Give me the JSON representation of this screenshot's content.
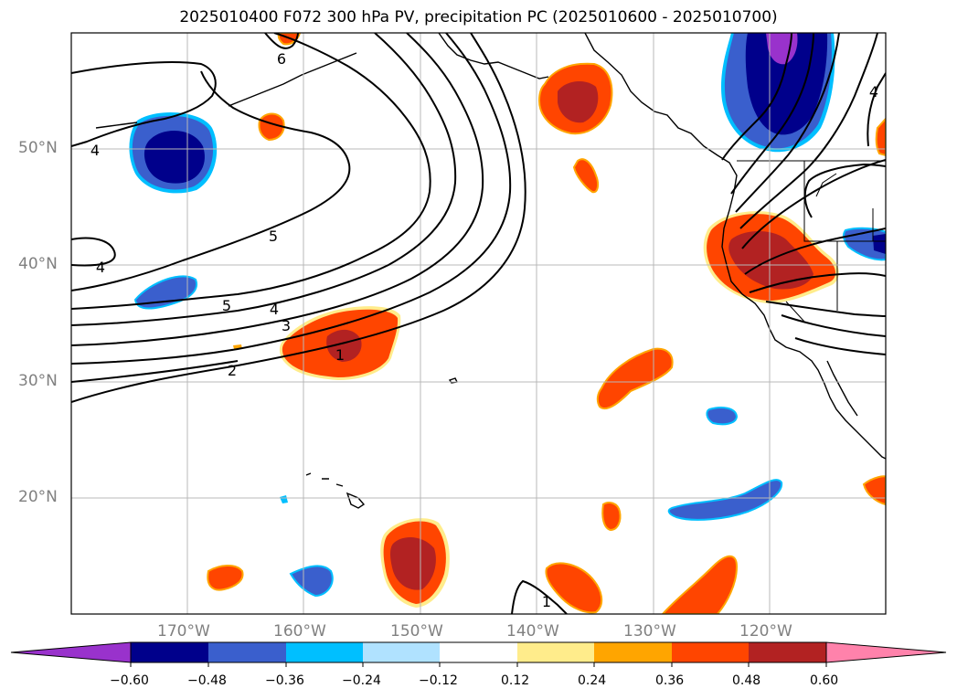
{
  "title": "2025010400 F072 300 hPa PV, precipitation PC (2025010600 - 2025010700)",
  "lat_labels": [
    "50°N",
    "40°N",
    "30°N",
    "20°N"
  ],
  "lon_labels": [
    "170°W",
    "160°W",
    "150°W",
    "140°W",
    "130°W",
    "120°W"
  ],
  "pv_contour_labels": [
    "6",
    "4",
    "4",
    "5",
    "5",
    "4",
    "3",
    "2",
    "1",
    "1",
    "4"
  ],
  "colorbar": {
    "tick_labels": [
      "−0.60",
      "−0.48",
      "−0.36",
      "−0.24",
      "−0.12",
      "0.12",
      "0.24",
      "0.36",
      "0.48",
      "0.60"
    ],
    "colors": [
      "#9932cc",
      "#00008b",
      "#3a5fcd",
      "#00bfff",
      "#b0e2ff",
      "#ffffff",
      "#ffec8b",
      "#ffa500",
      "#ff4500",
      "#b22222",
      "#ff82ab"
    ]
  }
}
